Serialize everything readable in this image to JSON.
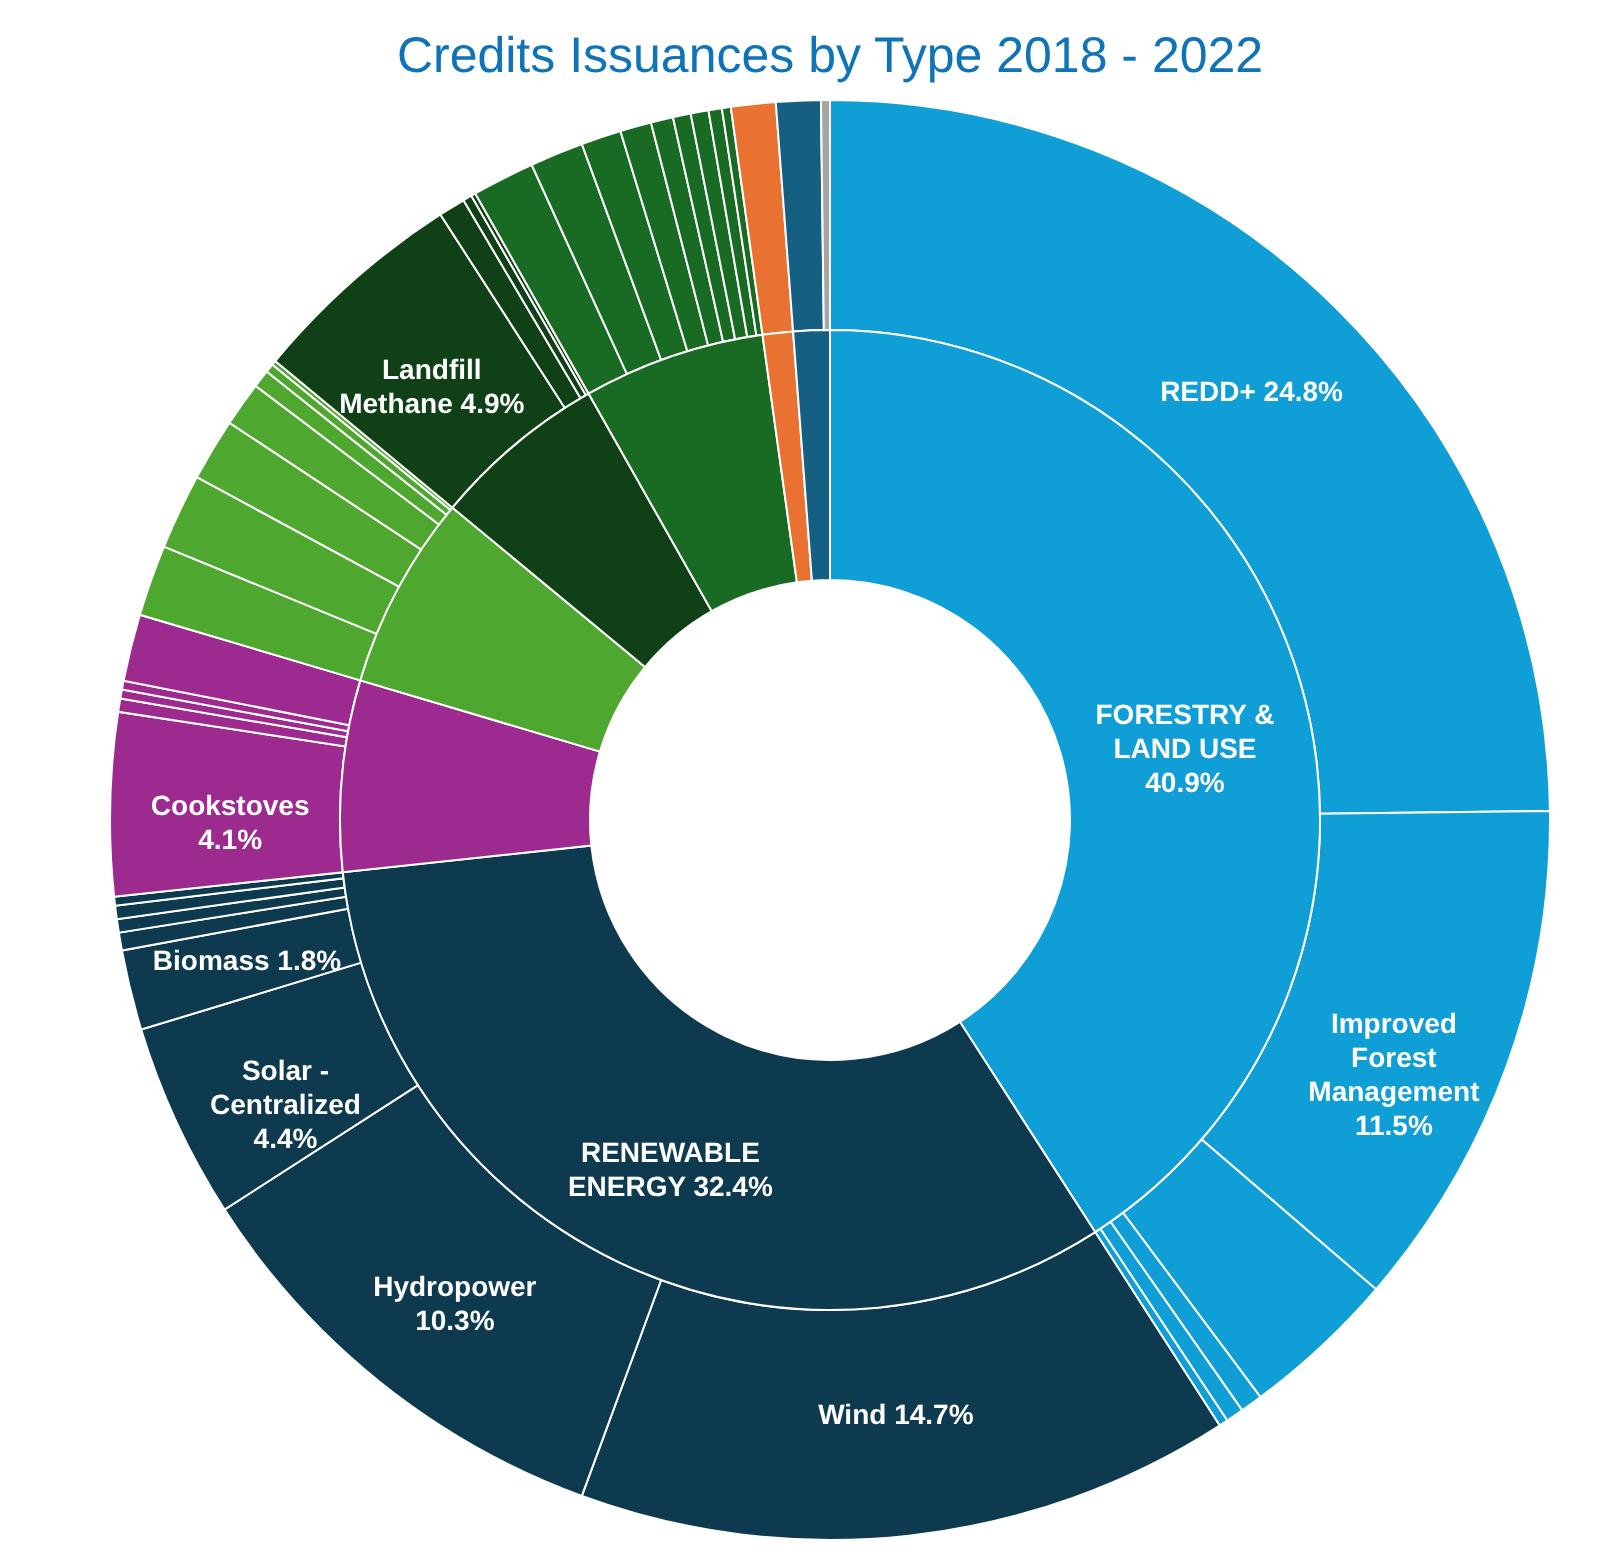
{
  "chart_data": [
    {
      "type": "donut",
      "title": "Credits Issuances by Type 2018 - 2022",
      "categories": [
        "FORESTRY & LAND USE",
        "RENEWABLE ENERGY",
        null,
        null,
        null,
        null,
        null,
        null
      ],
      "values": [
        40.9,
        32.4,
        6.3,
        6.4,
        5.8,
        6.0,
        1.0,
        1.2
      ],
      "value_labels": [
        "40.9%",
        "32.4%",
        null,
        null,
        null,
        null,
        null,
        null
      ],
      "colors": [
        "#0f9ed5",
        "#0e3a50",
        "#9c2a8f",
        "#4ea72e",
        "#0f4016",
        "#196b24",
        "#e97132",
        "#156082"
      ]
    },
    {
      "type": "donut",
      "categories": [
        "REDD+",
        "Improved Forest Management",
        null,
        null,
        null,
        null,
        "Wind",
        "Hydropower",
        "Solar - Centralized",
        "Biomass",
        null,
        null,
        null,
        null,
        "Cookstoves",
        null,
        null,
        null,
        null,
        null,
        null,
        null,
        null,
        null,
        null,
        null,
        "Landfill Methane",
        null,
        null,
        null,
        null,
        null,
        null,
        null,
        null,
        null,
        null,
        null,
        null,
        null,
        null,
        null
      ],
      "values": [
        24.8,
        11.5,
        3.5,
        0.5,
        0.4,
        0.2,
        14.7,
        10.3,
        4.4,
        1.8,
        0.4,
        0.3,
        0.3,
        0.2,
        4.1,
        0.3,
        0.2,
        0.2,
        1.5,
        1.6,
        1.7,
        1.4,
        1.0,
        0.4,
        0.2,
        0.1,
        4.9,
        0.6,
        0.2,
        0.1,
        1.4,
        1.2,
        0.9,
        0.7,
        0.5,
        0.4,
        0.4,
        0.3,
        0.2,
        1.0,
        1.0,
        0.2
      ],
      "value_labels": [
        "24.8%",
        "11.5%",
        null,
        null,
        null,
        null,
        "14.7%",
        "10.3%",
        "4.4%",
        "1.8%",
        null,
        null,
        null,
        null,
        "4.1%",
        null,
        null,
        null,
        null,
        null,
        null,
        null,
        null,
        null,
        null,
        null,
        "4.9%",
        null,
        null,
        null,
        null,
        null,
        null,
        null,
        null,
        null,
        null,
        null,
        null,
        null,
        null,
        null
      ],
      "colors": [
        "#0f9ed5",
        "#0f9ed5",
        "#0f9ed5",
        "#0f9ed5",
        "#0f9ed5",
        "#0f9ed5",
        "#0e3a50",
        "#0e3a50",
        "#0e3a50",
        "#0e3a50",
        "#0e3a50",
        "#0e3a50",
        "#0e3a50",
        "#0e3a50",
        "#9c2a8f",
        "#9c2a8f",
        "#9c2a8f",
        "#9c2a8f",
        "#9c2a8f",
        "#4ea72e",
        "#4ea72e",
        "#4ea72e",
        "#4ea72e",
        "#4ea72e",
        "#4ea72e",
        "#4ea72e",
        "#0f4016",
        "#0f4016",
        "#0f4016",
        "#0f4016",
        "#196b24",
        "#196b24",
        "#196b24",
        "#196b24",
        "#196b24",
        "#196b24",
        "#196b24",
        "#196b24",
        "#196b24",
        "#e97132",
        "#156082",
        "#a5a5a5"
      ]
    }
  ]
}
